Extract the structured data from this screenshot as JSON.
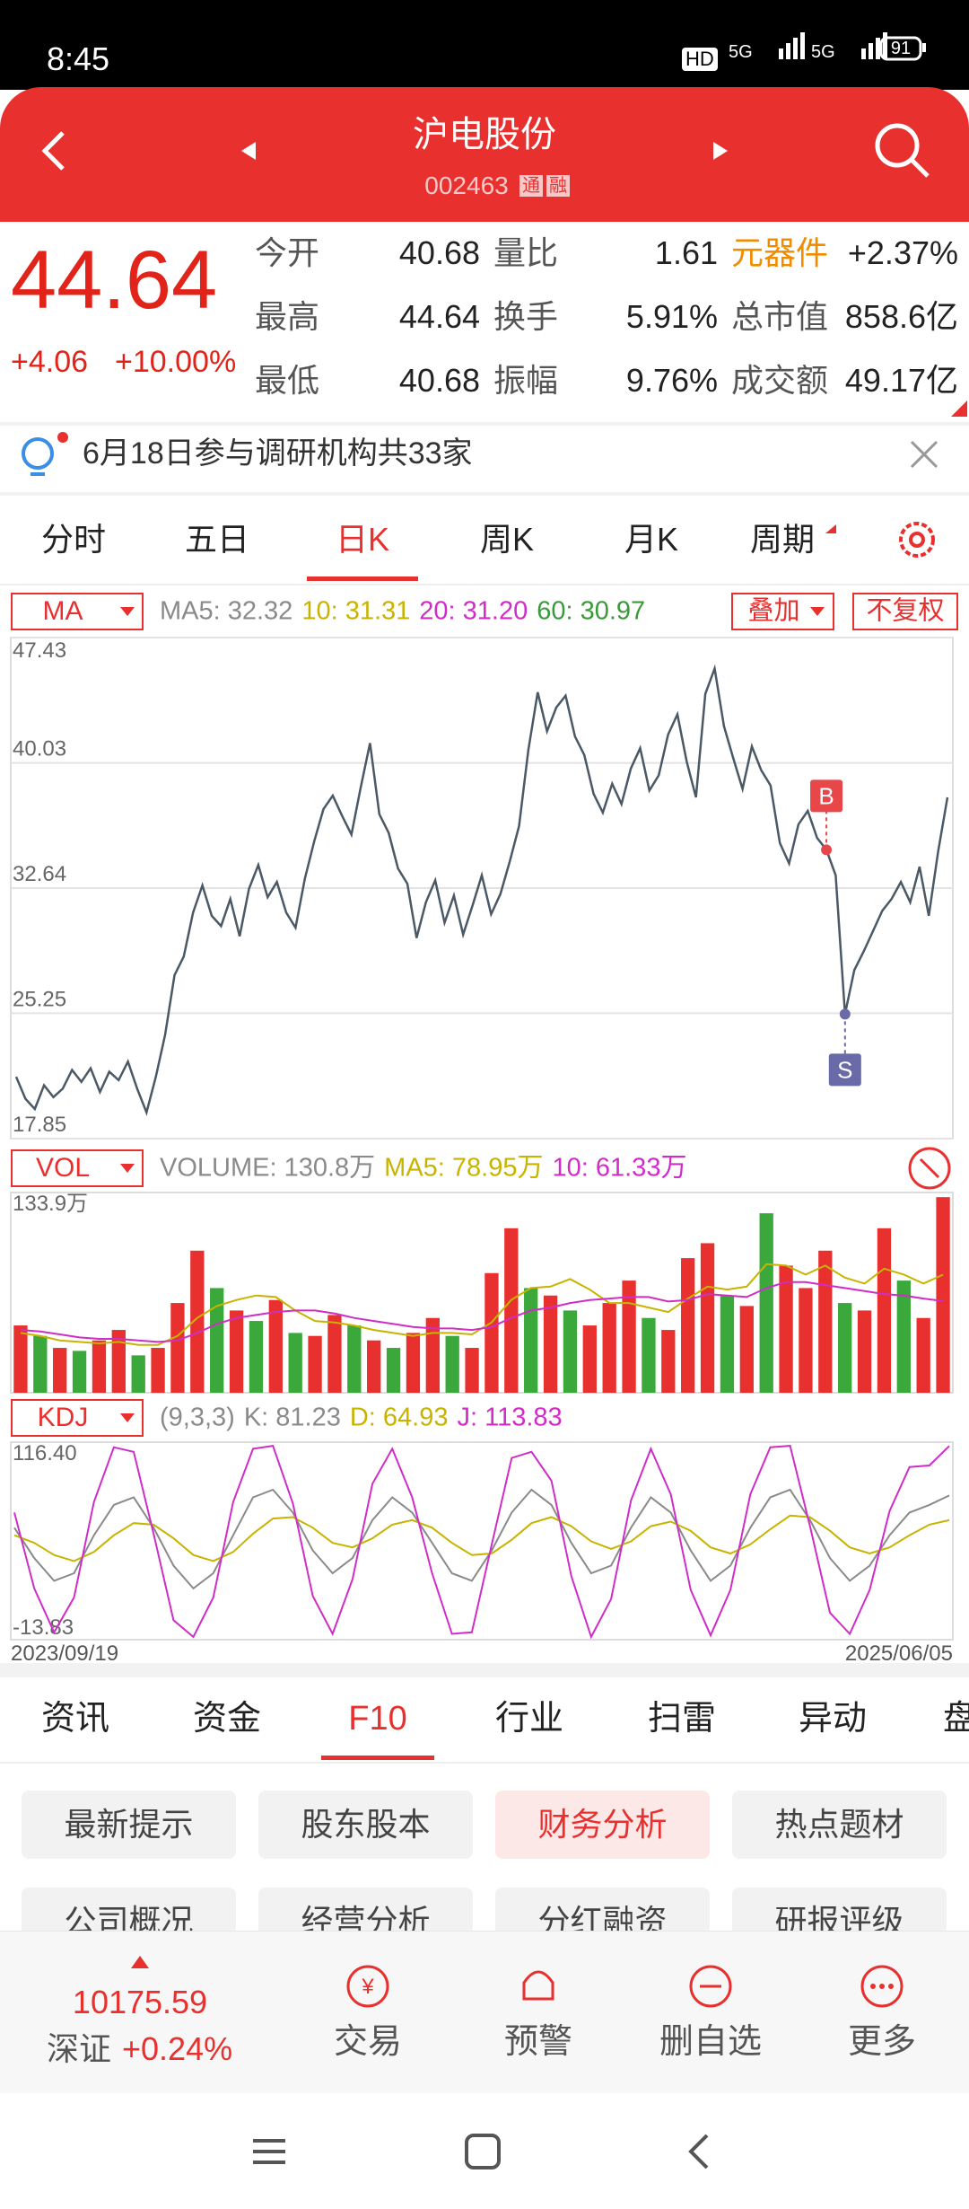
{
  "status": {
    "time": "8:45",
    "network": [
      "HD",
      "5G",
      "5G"
    ],
    "battery": "91"
  },
  "header": {
    "title": "沪电股份",
    "code": "002463",
    "badges": [
      "通",
      "融"
    ]
  },
  "quote": {
    "price": "44.64",
    "change": "+4.06",
    "change_pct": "+10.00%",
    "rows": [
      [
        {
          "label": "今开",
          "value": "40.68"
        },
        {
          "label": "量比",
          "value": "1.61"
        },
        {
          "label": "元器件",
          "value": "+2.37%",
          "label_color": "#f08c00"
        }
      ],
      [
        {
          "label": "最高",
          "value": "44.64"
        },
        {
          "label": "换手",
          "value": "5.91%"
        },
        {
          "label": "总市值",
          "value": "858.6亿"
        }
      ],
      [
        {
          "label": "最低",
          "value": "40.68"
        },
        {
          "label": "振幅",
          "value": "9.76%"
        },
        {
          "label": "成交额",
          "value": "49.17亿"
        }
      ]
    ]
  },
  "notice": "6月18日参与调研机构共33家",
  "period_tabs": {
    "items": [
      "分时",
      "五日",
      "日K",
      "周K",
      "月K",
      "周期"
    ],
    "active": 2
  },
  "ma_bar": {
    "indicator": "MA",
    "items": [
      {
        "text": "MA5: 32.32",
        "color": "#8a8a8a"
      },
      {
        "text": "10: 31.31",
        "color": "#c8b400"
      },
      {
        "text": "20: 31.20",
        "color": "#d02dc8"
      },
      {
        "text": "60: 30.97",
        "color": "#3a9a3a"
      }
    ],
    "buttons": [
      "叠加",
      "不复权"
    ]
  },
  "price_chart": {
    "type": "line",
    "color": "#4b5966",
    "values": [
      21.5,
      20.2,
      19.6,
      21.0,
      20.3,
      20.8,
      21.9,
      21.2,
      22.0,
      20.6,
      21.8,
      21.3,
      22.4,
      20.8,
      19.4,
      21.5,
      24.0,
      27.5,
      28.6,
      31.2,
      32.8,
      31.0,
      30.4,
      32.0,
      29.8,
      32.6,
      34.0,
      32.1,
      33.0,
      31.2,
      30.3,
      33.2,
      35.4,
      37.3,
      38.1,
      36.9,
      35.8,
      38.6,
      41.2,
      37.0,
      35.9,
      33.8,
      32.9,
      29.7,
      31.8,
      33.1,
      30.6,
      32.2,
      29.9,
      31.6,
      33.4,
      31.1,
      32.3,
      34.2,
      36.3,
      40.8,
      44.2,
      41.9,
      43.3,
      44.0,
      41.6,
      40.5,
      38.2,
      37.1,
      38.8,
      37.6,
      39.7,
      40.9,
      38.4,
      39.3,
      41.7,
      42.9,
      40.1,
      38.0,
      44.1,
      45.6,
      42.2,
      40.3,
      38.5,
      41.0,
      39.6,
      38.7,
      35.3,
      34.1,
      36.4,
      37.2,
      35.6,
      34.9,
      33.4,
      25.2,
      27.8,
      28.9,
      30.1,
      31.3,
      32.0,
      33.0,
      31.8,
      33.9,
      31.0,
      34.8,
      38.0
    ],
    "ylim": [
      17.85,
      47.43
    ],
    "yticks": [
      17.85,
      25.25,
      32.64,
      40.03,
      47.43
    ],
    "grid": true,
    "markers": [
      {
        "label": "B",
        "value": 34.9,
        "color": "#e8474a"
      },
      {
        "label": "S",
        "value": 25.2,
        "color": "#6a6aa8"
      }
    ]
  },
  "vol_bar": {
    "indicator": "VOL",
    "items": [
      {
        "text": "VOLUME: 130.8万",
        "color": "#8a8a8a"
      },
      {
        "text": "MA5: 78.95万",
        "color": "#c8b400"
      },
      {
        "text": "10: 61.33万",
        "color": "#d02dc8"
      }
    ]
  },
  "volume_chart": {
    "type": "bar",
    "values": [
      45,
      38,
      30,
      28,
      35,
      42,
      25,
      30,
      60,
      95,
      70,
      55,
      48,
      62,
      40,
      38,
      52,
      45,
      35,
      30,
      40,
      50,
      38,
      30,
      80,
      110,
      70,
      65,
      55,
      45,
      60,
      75,
      50,
      42,
      90,
      100,
      65,
      58,
      120,
      85,
      70,
      95,
      60,
      55,
      110,
      75,
      50,
      130.8
    ],
    "bar_colors": [
      "#e8312f",
      "#3aa83a",
      "#e8312f",
      "#3aa83a",
      "#e8312f",
      "#e8312f",
      "#3aa83a",
      "#e8312f",
      "#e8312f",
      "#e8312f",
      "#3aa83a",
      "#e8312f",
      "#3aa83a",
      "#e8312f",
      "#3aa83a",
      "#e8312f",
      "#e8312f",
      "#3aa83a",
      "#e8312f",
      "#3aa83a",
      "#e8312f",
      "#e8312f",
      "#3aa83a",
      "#e8312f",
      "#e8312f",
      "#e8312f",
      "#3aa83a",
      "#e8312f",
      "#3aa83a",
      "#e8312f",
      "#e8312f",
      "#e8312f",
      "#3aa83a",
      "#e8312f",
      "#e8312f",
      "#e8312f",
      "#3aa83a",
      "#e8312f",
      "#3aa83a",
      "#e8312f",
      "#e8312f",
      "#e8312f",
      "#3aa83a",
      "#e8312f",
      "#e8312f",
      "#3aa83a",
      "#e8312f",
      "#e8312f"
    ],
    "lines": [
      {
        "color": "#c8b400",
        "values": [
          40,
          38,
          35,
          34,
          33,
          34,
          32,
          32,
          38,
          50,
          58,
          62,
          65,
          64,
          55,
          48,
          47,
          45,
          42,
          40,
          38,
          40,
          40,
          39,
          47,
          62,
          70,
          71,
          76,
          69,
          60,
          60,
          57,
          54,
          63,
          71,
          69,
          71,
          86,
          85,
          79,
          85,
          77,
          73,
          83,
          79,
          73,
          78.95
        ]
      },
      {
        "color": "#d02dc8",
        "values": [
          42,
          41,
          39,
          37,
          36,
          36,
          35,
          34,
          35,
          40,
          46,
          50,
          52,
          54,
          55,
          55,
          53,
          50,
          48,
          46,
          44,
          43,
          43,
          42,
          44,
          50,
          55,
          57,
          60,
          62,
          63,
          64,
          64,
          61,
          62,
          66,
          65,
          64,
          70,
          74,
          74,
          72,
          70,
          68,
          66,
          65,
          63,
          61.33
        ]
      }
    ],
    "ylim": [
      0,
      133.9
    ],
    "yticks": [
      {
        "value": 133.9,
        "label": "133.9万"
      }
    ]
  },
  "kdj_bar": {
    "indicator": "KDJ",
    "items": [
      {
        "text": "(9,3,3)",
        "color": "#8a8a8a"
      },
      {
        "text": "K: 81.23",
        "color": "#8a8a8a"
      },
      {
        "text": "D: 64.93",
        "color": "#c8b400"
      },
      {
        "text": "J: 113.83",
        "color": "#d02dc8"
      }
    ]
  },
  "kdj_chart": {
    "type": "line",
    "series": [
      {
        "color": "#8a8a8a",
        "values": [
          60,
          40,
          25,
          30,
          55,
          75,
          80,
          60,
          35,
          20,
          30,
          55,
          80,
          85,
          70,
          45,
          30,
          40,
          65,
          80,
          70,
          50,
          30,
          25,
          45,
          70,
          85,
          75,
          50,
          30,
          35,
          60,
          80,
          70,
          45,
          25,
          35,
          60,
          80,
          85,
          65,
          40,
          25,
          35,
          55,
          70,
          75,
          81.23
        ]
      },
      {
        "color": "#c8b400",
        "values": [
          55,
          50,
          42,
          38,
          44,
          55,
          63,
          62,
          53,
          42,
          38,
          44,
          56,
          66,
          67,
          60,
          50,
          47,
          53,
          62,
          65,
          60,
          50,
          42,
          43,
          52,
          63,
          67,
          61,
          51,
          46,
          51,
          61,
          64,
          58,
          47,
          43,
          49,
          59,
          68,
          67,
          58,
          47,
          43,
          47,
          55,
          62,
          64.93
        ]
      },
      {
        "color": "#d02dc8",
        "values": [
          70,
          20,
          -9,
          14,
          77,
          113,
          110,
          56,
          -1,
          -12,
          14,
          77,
          112,
          114,
          76,
          15,
          -10,
          26,
          89,
          112,
          80,
          30,
          -10,
          -9,
          49,
          106,
          110,
          91,
          28,
          -12,
          13,
          78,
          112,
          82,
          19,
          -11,
          19,
          82,
          113,
          114,
          61,
          4,
          -10,
          19,
          71,
          100,
          101,
          113.83
        ]
      }
    ],
    "ylim": [
      -13.83,
      116.4
    ],
    "yticks": [
      -13.83,
      {
        "value": 116.4,
        "label": "116.40"
      }
    ]
  },
  "dates": [
    "2023/09/19",
    "2025/06/05"
  ],
  "info_tabs": {
    "items": [
      "资讯",
      "资金",
      "F10",
      "行业",
      "扫雷",
      "异动",
      "盘"
    ],
    "active": 2
  },
  "f10_buttons": {
    "items": [
      "最新提示",
      "股东股本",
      "财务分析",
      "热点题材",
      "公司概况",
      "经营分析",
      "分红融资",
      "研报评级"
    ],
    "active": 2
  },
  "bottom_bar": {
    "index_value": "10175.59",
    "index_name": "深证",
    "index_change": "+0.24%",
    "actions": [
      "交易",
      "预警",
      "删自选",
      "更多"
    ]
  }
}
